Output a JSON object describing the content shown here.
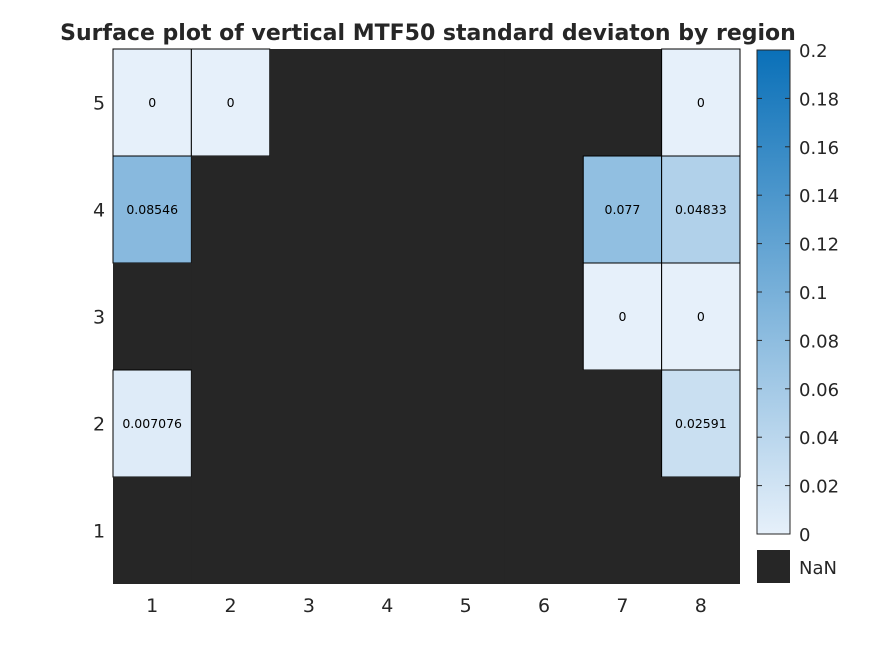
{
  "chart_data": {
    "type": "heatmap",
    "title": "Surface plot of vertical MTF50 standard deviaton by region",
    "x_ticks": [
      "1",
      "2",
      "3",
      "4",
      "5",
      "6",
      "7",
      "8"
    ],
    "y_ticks": [
      "1",
      "2",
      "3",
      "4",
      "5"
    ],
    "rows": [
      {
        "y": 5,
        "values": [
          0,
          0,
          null,
          null,
          null,
          null,
          null,
          0
        ],
        "labels": [
          "0",
          "0",
          "",
          "",
          "",
          "",
          "",
          "0"
        ]
      },
      {
        "y": 4,
        "values": [
          0.08546,
          null,
          null,
          null,
          null,
          null,
          0.077,
          0.04833
        ],
        "labels": [
          "0.08546",
          "",
          "",
          "",
          "",
          "",
          "0.077",
          "0.04833"
        ]
      },
      {
        "y": 3,
        "values": [
          null,
          null,
          null,
          null,
          null,
          null,
          0,
          0
        ],
        "labels": [
          "",
          "",
          "",
          "",
          "",
          "",
          "0",
          "0"
        ]
      },
      {
        "y": 2,
        "values": [
          0.007076,
          null,
          null,
          null,
          null,
          null,
          null,
          0.02591
        ],
        "labels": [
          "0.007076",
          "",
          "",
          "",
          "",
          "",
          "",
          "0.02591"
        ]
      },
      {
        "y": 1,
        "values": [
          null,
          null,
          null,
          null,
          null,
          null,
          null,
          null
        ],
        "labels": [
          "",
          "",
          "",
          "",
          "",
          "",
          "",
          ""
        ]
      }
    ],
    "colorbar": {
      "range": [
        0,
        0.2
      ],
      "ticks": [
        "0",
        "0.02",
        "0.04",
        "0.06",
        "0.08",
        "0.1",
        "0.12",
        "0.14",
        "0.16",
        "0.18",
        "0.2"
      ],
      "color_low": "#e6f0fa",
      "color_high": "#0a70b8",
      "nan_label": "NaN",
      "nan_color": "#262626"
    },
    "grid": false
  }
}
